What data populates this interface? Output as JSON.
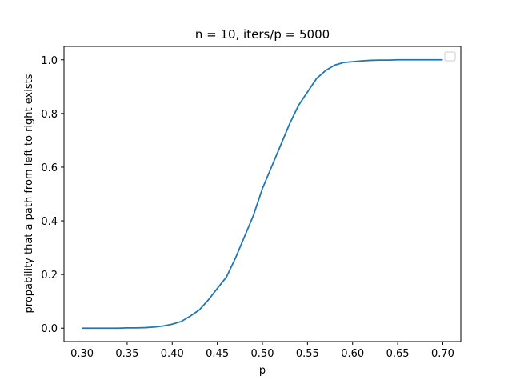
{
  "chart_data": {
    "type": "line",
    "title": "n = 10, iters/p = 5000",
    "xlabel": "p",
    "ylabel": "propability that a path from left to right exists",
    "xlim": [
      0.28,
      0.72
    ],
    "ylim": [
      -0.05,
      1.05
    ],
    "xticks": [
      "0.30",
      "0.35",
      "0.40",
      "0.45",
      "0.50",
      "0.55",
      "0.60",
      "0.65",
      "0.70"
    ],
    "yticks": [
      "0.0",
      "0.2",
      "0.4",
      "0.6",
      "0.8",
      "1.0"
    ],
    "grid": false,
    "legend": "top-right (empty)",
    "line_color": "#1f77b4",
    "series": [
      {
        "x": [
          0.3,
          0.31,
          0.32,
          0.33,
          0.34,
          0.35,
          0.36,
          0.37,
          0.38,
          0.39,
          0.4,
          0.41,
          0.42,
          0.43,
          0.44,
          0.45,
          0.46,
          0.47,
          0.48,
          0.49,
          0.5,
          0.51,
          0.52,
          0.53,
          0.54,
          0.55,
          0.56,
          0.57,
          0.58,
          0.59,
          0.6,
          0.61,
          0.62,
          0.63,
          0.64,
          0.65,
          0.66,
          0.67,
          0.68,
          0.69,
          0.7
        ],
        "values": [
          0.0,
          0.0,
          0.0,
          0.0,
          0.0,
          0.001,
          0.001,
          0.002,
          0.004,
          0.008,
          0.015,
          0.025,
          0.045,
          0.068,
          0.105,
          0.148,
          0.19,
          0.26,
          0.34,
          0.42,
          0.52,
          0.6,
          0.68,
          0.76,
          0.83,
          0.88,
          0.93,
          0.96,
          0.98,
          0.99,
          0.993,
          0.996,
          0.998,
          0.999,
          0.999,
          1.0,
          1.0,
          1.0,
          1.0,
          1.0,
          1.0
        ]
      }
    ]
  }
}
